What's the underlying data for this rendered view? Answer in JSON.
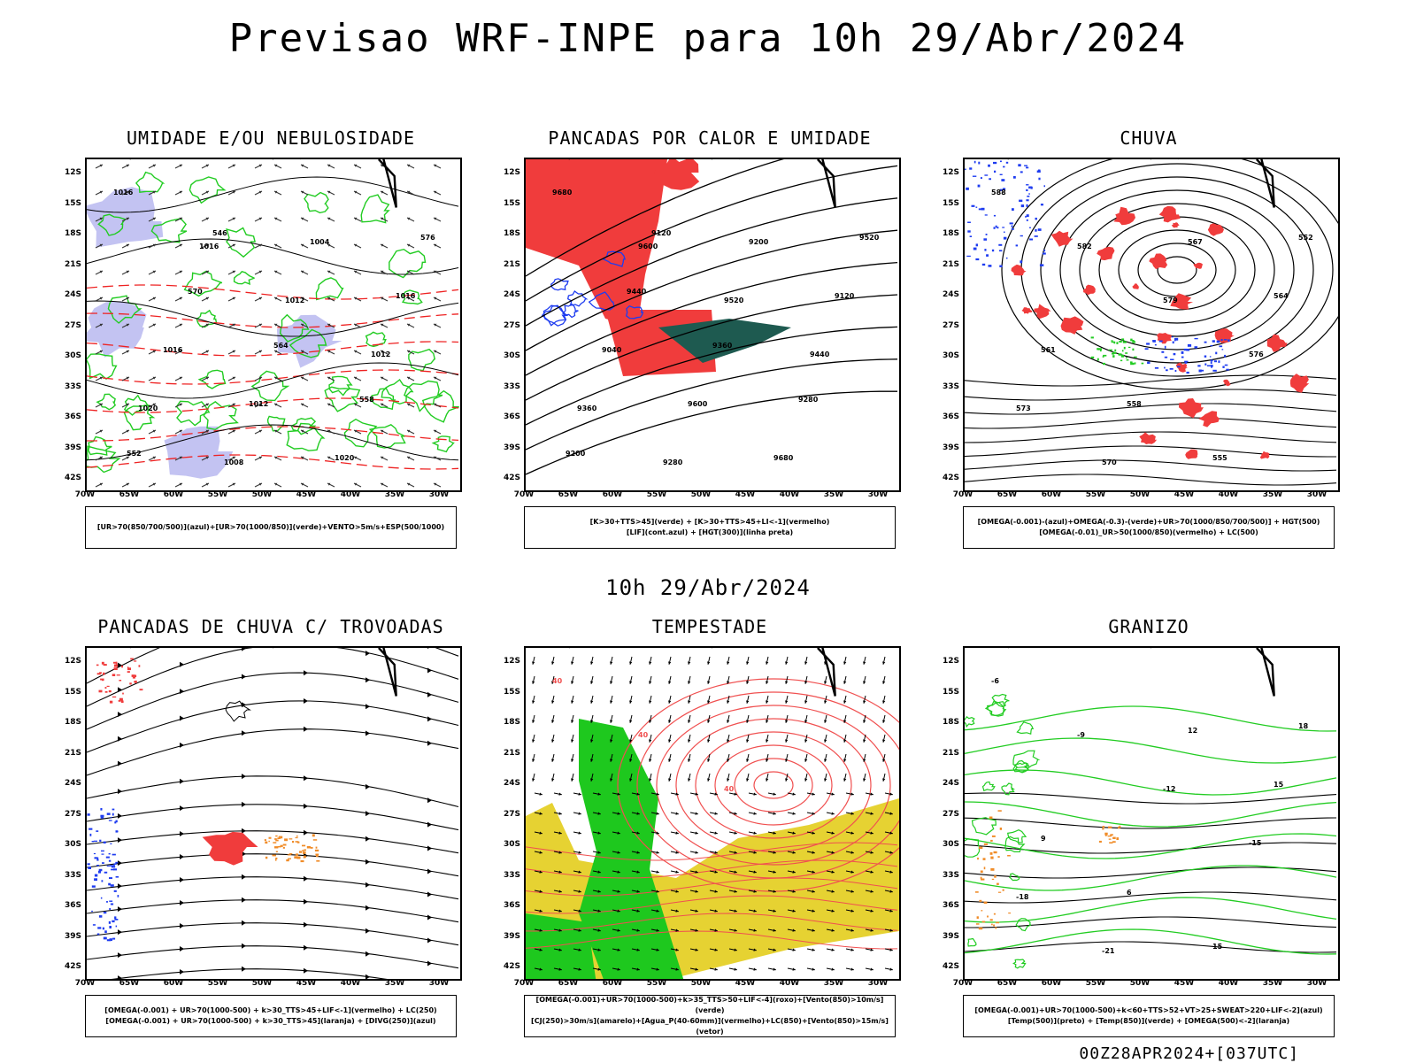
{
  "header": {
    "title": "Previsao WRF-INPE  para 10h 29/Abr/2024"
  },
  "subtitle": "10h 29/Abr/2024",
  "footer": "00Z28APR2024+[037UTC]",
  "axes": {
    "lat_labels": [
      "12S",
      "15S",
      "18S",
      "21S",
      "24S",
      "27S",
      "30S",
      "33S",
      "36S",
      "39S",
      "42S"
    ],
    "lon_labels": [
      "70W",
      "65W",
      "60W",
      "55W",
      "50W",
      "45W",
      "40W",
      "35W",
      "30W"
    ]
  },
  "panels": [
    {
      "id": "umidade",
      "title": "UMIDADE E/OU NEBULOSIDADE",
      "legend": [
        "[UR>70(850/700/500)](azul)+[UR>70(1000/850)](verde)+VENTO>5m/s+ESP(500/1000)"
      ],
      "colors": {
        "shade": "#b9b9f0",
        "contour": "#22cc22",
        "dash": "#ee2222"
      },
      "contour_labels": [
        "1016",
        "1016",
        "1012",
        "1012",
        "1020",
        "1008",
        "1004",
        "1016",
        "1016",
        "1012",
        "1020",
        "576",
        "570",
        "564",
        "558",
        "552",
        "546"
      ]
    },
    {
      "id": "pancadas_calor",
      "title": "PANCADAS POR CALOR E UMIDADE",
      "legend": [
        "[K>30+TTS>45](verde) + [K>30+TTS>45+LI<-1](vermelho)",
        "[LIF](cont.azul) + [HGT(300)](linha preta)"
      ],
      "colors": {
        "red": "#f03c3c",
        "teal": "#1e5a50",
        "blue": "#1e3cf0"
      },
      "contour_labels": [
        "9680",
        "9600",
        "9520",
        "9440",
        "9360",
        "9280",
        "9200",
        "9120",
        "9040",
        "9600",
        "9680",
        "9520",
        "9440",
        "9360",
        "9280",
        "9200",
        "9120"
      ]
    },
    {
      "id": "chuva",
      "title": "CHUVA",
      "legend": [
        "[OMEGA(-0.001)-(azul)+OMEGA(-0.3)-(verde)+UR>70(1000/850/700/500)] + HGT(500)",
        "[OMEGA(-0.01)_UR>50(1000/850)(vermelho) + LC(500)"
      ],
      "colors": {
        "red": "#f03c3c",
        "blue": "#1e3cf0",
        "green": "#22cc22"
      },
      "contour_labels": [
        "588",
        "582",
        "579",
        "576",
        "573",
        "570",
        "567",
        "564",
        "561",
        "558",
        "555",
        "552"
      ]
    },
    {
      "id": "pancadas_trovoadas",
      "title": "PANCADAS DE CHUVA C/ TROVOADAS",
      "legend": [
        "[OMEGA(-0.001) + UR>70(1000-500) + k>30_TTS>45+LIF<-1](vermelho) + LC(250)",
        "[OMEGA(-0.001) + UR>70(1000-500) + k>30_TTS>45](laranja) + [DIVG(250)](azul)"
      ],
      "colors": {
        "red": "#f03c3c",
        "orange": "#f08c28",
        "blue": "#1e3cf0"
      },
      "contour_labels": []
    },
    {
      "id": "tempestade",
      "title": "TEMPESTADE",
      "legend": [
        "[OMEGA(-0.001)+UR>70(1000-500)+k>35_TTS>50+LIF<-4](roxo)+[Vento(850)>10m/s](verde)",
        "[CJ(250)>30m/s](amarelo)+[Agua_P(40-60mm)](vermelho)+LC(850)+[Vento(850)>15m/s](vetor)"
      ],
      "colors": {
        "yellow": "#e6d232",
        "green": "#1ec81e",
        "red": "#f05050"
      },
      "contour_labels": [
        "40",
        "40",
        "40"
      ]
    },
    {
      "id": "granizo",
      "title": "GRANIZO",
      "legend": [
        "[OMEGA(-0.001)+UR>70(1000-500)+k<60+TTS>52+VT>25+SWEAT>220+LIF<-2](azul)",
        "[Temp(500)](preto) + [Temp(850)](verde) + [OMEGA(500)<-2](laranja)"
      ],
      "colors": {
        "green": "#22cc22",
        "orange": "#f08c28"
      },
      "contour_labels": [
        "-6",
        "-9",
        "-12",
        "-15",
        "-18",
        "-21",
        "12",
        "15",
        "9",
        "6",
        "15",
        "18"
      ]
    }
  ]
}
